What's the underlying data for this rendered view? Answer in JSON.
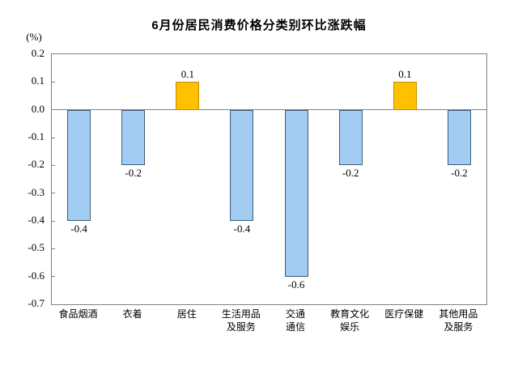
{
  "chart_data": {
    "type": "bar",
    "title": "6月份居民消费价格分类别环比涨跌幅",
    "unit_label": "(%)",
    "categories": [
      "食品烟酒",
      "衣着",
      "居住",
      "生活用品及服务",
      "交通通信",
      "教育文化娱乐",
      "医疗保健",
      "其他用品及服务"
    ],
    "category_label_lines": [
      [
        "食品烟酒"
      ],
      [
        "衣着"
      ],
      [
        "居住"
      ],
      [
        "生活用品",
        "及服务"
      ],
      [
        "交通",
        "通信"
      ],
      [
        "教育文化",
        "娱乐"
      ],
      [
        "医疗保健"
      ],
      [
        "其他用品",
        "及服务"
      ]
    ],
    "values": [
      -0.4,
      -0.2,
      0.1,
      -0.4,
      -0.6,
      -0.2,
      0.1,
      -0.2
    ],
    "value_labels": [
      "-0.4",
      "-0.2",
      "0.1",
      "-0.4",
      "-0.6",
      "-0.2",
      "0.1",
      "-0.2"
    ],
    "xlabel": "",
    "ylabel": "(%)",
    "ylim": [
      -0.7,
      0.2
    ],
    "y_ticks": [
      "0.2",
      "0.1",
      "0.0",
      "-0.1",
      "-0.2",
      "-0.3",
      "-0.4",
      "-0.5",
      "-0.6",
      "-0.7"
    ],
    "grid": false,
    "legend": "none",
    "data_labels": true,
    "colors": {
      "positive_fill": "#FFC000",
      "positive_border": "#BF8F00",
      "negative_fill": "#A3CCF3",
      "negative_border": "#3F5D7A",
      "axis": "#808080",
      "text": "#000000",
      "background": "#FFFFFF"
    }
  }
}
